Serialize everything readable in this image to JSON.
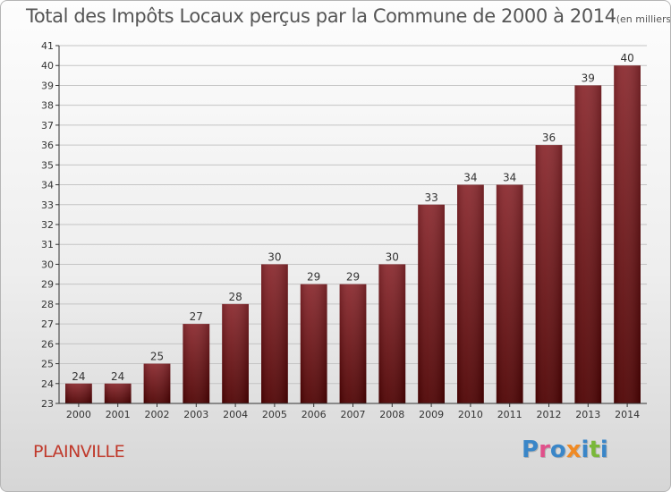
{
  "title": "Total des Impôts Locaux perçus par la Commune de 2000 à 2014",
  "title_unit": "(en milliers d'€)",
  "place_name": "PLAINVILLE",
  "logo": {
    "text": "Proxiti",
    "letters": [
      {
        "char": "P",
        "color": "#3a86c8"
      },
      {
        "char": "r",
        "color": "#e0508a"
      },
      {
        "char": "o",
        "color": "#3a86c8"
      },
      {
        "char": "x",
        "color": "#f08a24"
      },
      {
        "char": "i",
        "color": "#3a86c8"
      },
      {
        "char": "t",
        "color": "#7ab83a"
      },
      {
        "char": "i",
        "color": "#3a86c8"
      }
    ]
  },
  "colors": {
    "bar_dark": "#4e0202",
    "bar_light": "#8b2a2f",
    "axis_text": "#333333",
    "grid": "#c4c4c4"
  },
  "chart_data": {
    "type": "bar",
    "title": "Total des Impôts Locaux perçus par la Commune de 2000 à 2014",
    "unit": "(en milliers d'€)",
    "categories": [
      "2000",
      "2001",
      "2002",
      "2003",
      "2004",
      "2005",
      "2006",
      "2007",
      "2008",
      "2009",
      "2010",
      "2011",
      "2012",
      "2013",
      "2014"
    ],
    "values": [
      24,
      24,
      25,
      27,
      28,
      30,
      29,
      29,
      30,
      33,
      34,
      34,
      36,
      39,
      40
    ],
    "xlabel": "",
    "ylabel": "",
    "ylim": [
      23,
      41
    ],
    "yticks": [
      23,
      24,
      25,
      26,
      27,
      28,
      29,
      30,
      31,
      32,
      33,
      34,
      35,
      36,
      37,
      38,
      39,
      40,
      41
    ],
    "grid": true,
    "data_labels": true
  }
}
